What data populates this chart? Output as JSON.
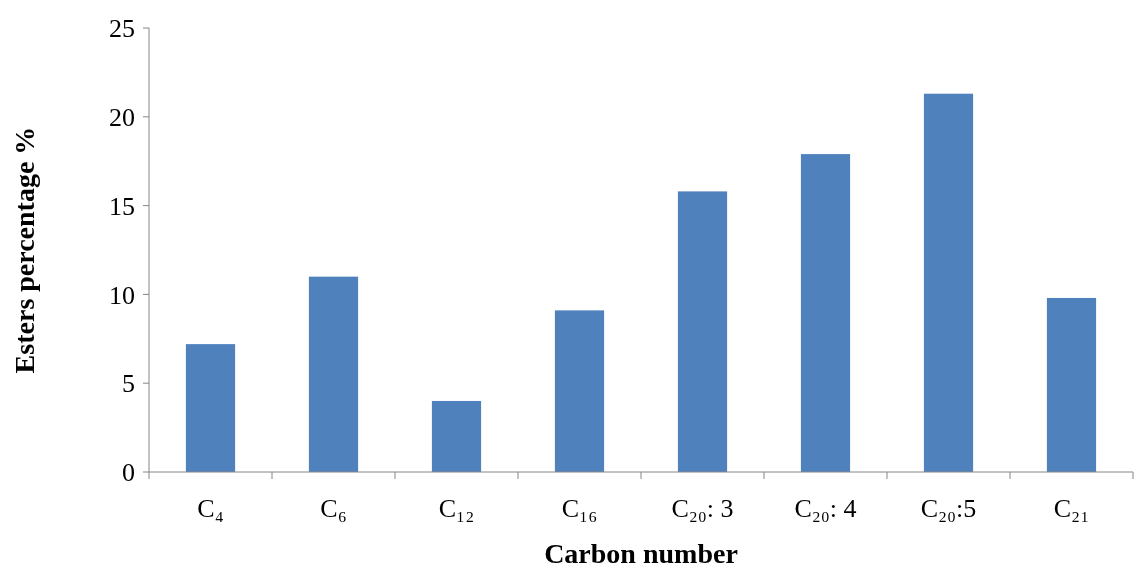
{
  "chart_data": {
    "type": "bar",
    "xlabel": "Carbon number",
    "ylabel": "Esters percentage %",
    "categories": [
      "C₄",
      "C₆",
      "C₁₂",
      "C₁₆",
      "C₂₀: 3",
      "C₂₀: 4",
      "C₂₀:5",
      "C₂₁"
    ],
    "values": [
      7.2,
      11,
      4,
      9.1,
      15.8,
      17.9,
      21.3,
      9.8
    ],
    "color": "#4f81bd",
    "ylim": [
      0,
      25
    ],
    "yticks": [
      0,
      5,
      10,
      15,
      20,
      25
    ],
    "grid": false
  }
}
